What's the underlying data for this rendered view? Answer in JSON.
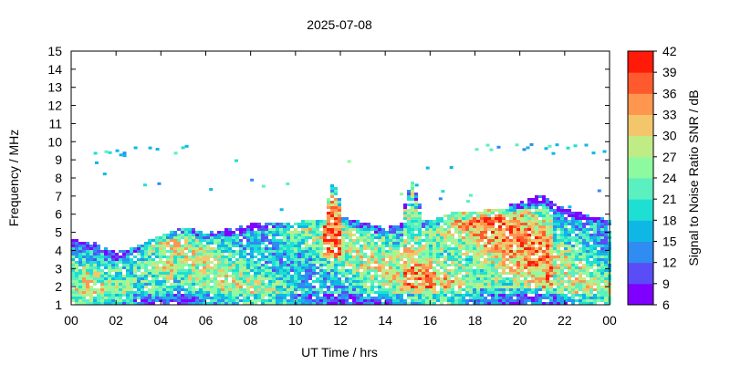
{
  "chart_data": {
    "type": "heatmap",
    "title": "2025-07-08",
    "xlabel": "UT Time / hrs",
    "ylabel": "Frequency / MHz",
    "colorbar_label": "Signal to Noise Ratio SNR / dB",
    "xlim": [
      0,
      24
    ],
    "ylim": [
      1,
      15
    ],
    "x_ticks": [
      "00",
      "02",
      "04",
      "06",
      "08",
      "10",
      "12",
      "14",
      "16",
      "18",
      "20",
      "22",
      "00"
    ],
    "y_ticks": [
      "1",
      "2",
      "3",
      "4",
      "5",
      "6",
      "7",
      "8",
      "9",
      "10",
      "11",
      "12",
      "13",
      "14",
      "15"
    ],
    "colorbar": {
      "range": [
        6,
        42
      ],
      "ticks": [
        "6",
        "9",
        "12",
        "15",
        "18",
        "21",
        "24",
        "27",
        "30",
        "33",
        "36",
        "39",
        "42"
      ],
      "colors": [
        "#7f00ff",
        "#5a4cf7",
        "#2f8cf0",
        "#0fb7e5",
        "#1ee0d2",
        "#5af0c0",
        "#8efaa0",
        "#c0ec86",
        "#f3c66c",
        "#ff9650",
        "#ff5a2d",
        "#ff1a0a"
      ]
    },
    "envelope": {
      "upper_edge_hours": [
        0,
        1,
        2,
        3,
        4,
        5,
        6,
        7,
        8,
        9,
        10,
        11,
        12,
        13,
        14,
        15,
        16,
        17,
        18,
        19,
        20,
        21,
        22,
        23,
        24
      ],
      "upper_edge_mhz": [
        4.5,
        4.4,
        3.8,
        4.2,
        4.8,
        5.2,
        5.0,
        5.1,
        5.4,
        5.5,
        5.5,
        5.6,
        5.8,
        5.5,
        5.2,
        5.5,
        5.6,
        6.0,
        6.1,
        6.2,
        6.6,
        7.0,
        6.2,
        5.9,
        5.6
      ],
      "lower_edge_mhz": 1.0
    },
    "spikes": [
      {
        "hour": 11.7,
        "top_mhz": 7.8
      },
      {
        "hour": 15.2,
        "top_mhz": 7.8
      }
    ],
    "sporadic_bands": [
      {
        "from_hour": 1.0,
        "to_hour": 5.3,
        "freq_mhz": 9.6
      },
      {
        "from_hour": 18.0,
        "to_hour": 24.0,
        "freq_mhz": 9.7
      }
    ]
  }
}
